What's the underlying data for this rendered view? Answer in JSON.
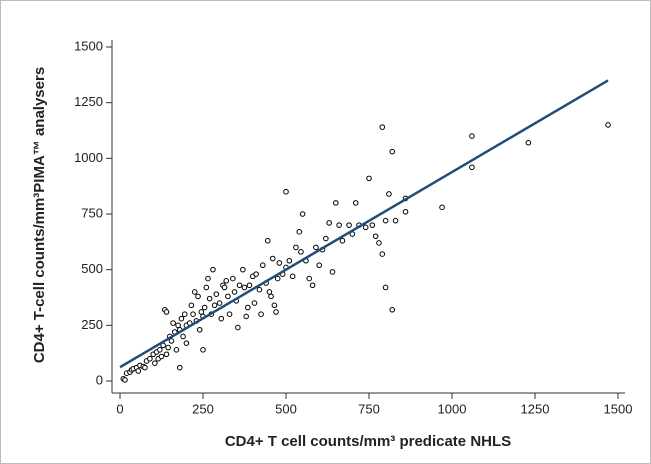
{
  "chart_data": {
    "type": "scatter",
    "x_label": "CD4+ T cell counts/mm³ predicate NHLS",
    "y_label": "CD4+ T-cell counts/mm³PIMA™ analysers",
    "x": [
      10,
      15,
      20,
      30,
      35,
      40,
      50,
      55,
      60,
      70,
      75,
      80,
      90,
      100,
      105,
      110,
      115,
      120,
      125,
      130,
      135,
      140,
      140,
      145,
      150,
      155,
      160,
      165,
      170,
      175,
      180,
      180,
      185,
      190,
      195,
      200,
      200,
      210,
      215,
      220,
      225,
      230,
      235,
      240,
      245,
      250,
      250,
      255,
      260,
      265,
      270,
      275,
      280,
      285,
      290,
      300,
      305,
      310,
      315,
      320,
      325,
      330,
      340,
      345,
      350,
      355,
      360,
      370,
      375,
      380,
      385,
      390,
      400,
      405,
      410,
      420,
      425,
      430,
      440,
      445,
      450,
      455,
      460,
      465,
      470,
      475,
      480,
      490,
      500,
      500,
      510,
      520,
      530,
      540,
      545,
      550,
      560,
      570,
      580,
      590,
      600,
      610,
      620,
      630,
      640,
      650,
      660,
      670,
      690,
      700,
      710,
      720,
      740,
      750,
      760,
      770,
      780,
      790,
      790,
      800,
      800,
      810,
      820,
      820,
      830,
      860,
      860,
      970,
      1060,
      1060,
      1230,
      1470
    ],
    "values": [
      10,
      5,
      35,
      40,
      50,
      55,
      60,
      45,
      70,
      65,
      60,
      90,
      100,
      120,
      80,
      130,
      100,
      140,
      110,
      160,
      320,
      310,
      120,
      150,
      200,
      180,
      260,
      220,
      140,
      250,
      230,
      60,
      280,
      200,
      300,
      250,
      170,
      260,
      340,
      300,
      400,
      270,
      380,
      230,
      310,
      290,
      140,
      330,
      420,
      460,
      370,
      300,
      500,
      340,
      390,
      350,
      280,
      430,
      420,
      450,
      380,
      300,
      460,
      400,
      360,
      240,
      430,
      500,
      420,
      290,
      330,
      430,
      470,
      350,
      480,
      410,
      300,
      520,
      440,
      630,
      400,
      380,
      550,
      340,
      310,
      460,
      530,
      480,
      510,
      850,
      540,
      470,
      600,
      670,
      580,
      750,
      540,
      460,
      430,
      600,
      520,
      590,
      640,
      710,
      490,
      800,
      700,
      630,
      700,
      660,
      800,
      700,
      690,
      910,
      700,
      650,
      620,
      1140,
      570,
      420,
      720,
      840,
      320,
      1030,
      720,
      760,
      820,
      780,
      1100,
      960,
      1070,
      1150
    ],
    "point_color": "#000000",
    "fit": {
      "x": [
        0,
        1470
      ],
      "values": [
        62,
        1350
      ],
      "color": "#1f4e79"
    },
    "xlim": [
      0,
      1500
    ],
    "ylim": [
      0,
      1500
    ],
    "xticks": [
      0,
      250,
      500,
      750,
      1000,
      1250,
      1500
    ],
    "yticks": [
      0,
      250,
      500,
      750,
      1000,
      1250,
      1500
    ]
  }
}
